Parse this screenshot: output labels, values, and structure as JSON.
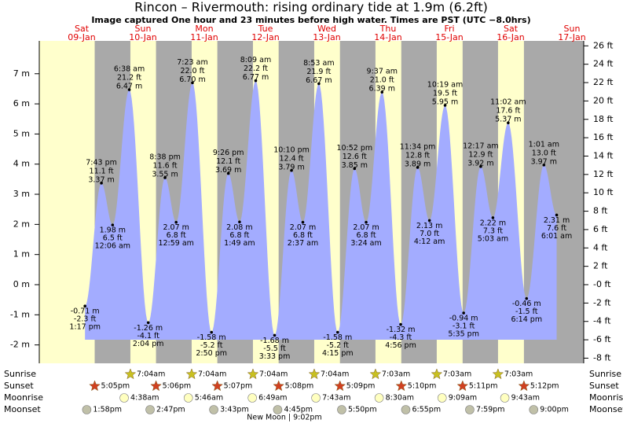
{
  "title": "Rincon – Rivermouth: rising  ordinary tide at 1.9m (6.2ft)",
  "subtitle": "Image captured One hour and 23 minutes before high water. Times are PST (UTC −8.0hrs)",
  "chart_data": {
    "type": "tide",
    "color": "#a3acff",
    "days": [
      {
        "weekday": "Sat",
        "date": "09-Jan"
      },
      {
        "weekday": "Sun",
        "date": "10-Jan"
      },
      {
        "weekday": "Mon",
        "date": "11-Jan"
      },
      {
        "weekday": "Tue",
        "date": "12-Jan"
      },
      {
        "weekday": "Wed",
        "date": "13-Jan"
      },
      {
        "weekday": "Thu",
        "date": "14-Jan"
      },
      {
        "weekday": "Fri",
        "date": "15-Jan"
      },
      {
        "weekday": "Sat",
        "date": "16-Jan"
      },
      {
        "weekday": "Sun",
        "date": "17-Jan"
      }
    ],
    "ylim": [
      -2.61,
      8.09
    ],
    "yticks": [
      {
        "value": 7,
        "label": "7 m"
      },
      {
        "value": 6,
        "label": "6 m"
      },
      {
        "value": 5,
        "label": "5 m"
      },
      {
        "value": 4,
        "label": "4 m"
      },
      {
        "value": 3,
        "label": "3 m"
      },
      {
        "value": 2,
        "label": "2 m"
      },
      {
        "value": 1,
        "label": "1 m"
      },
      {
        "value": 0,
        "label": "0 m"
      },
      {
        "value": -1,
        "label": "-1 m"
      },
      {
        "value": -2,
        "label": "-2 m"
      }
    ],
    "y2lim": [
      -8.56,
      26.54
    ],
    "y2ticks": [
      {
        "value": 26,
        "label": "26 ft"
      },
      {
        "value": 24,
        "label": "24 ft"
      },
      {
        "value": 22,
        "label": "22 ft"
      },
      {
        "value": 20,
        "label": "20 ft"
      },
      {
        "value": 18,
        "label": "18 ft"
      },
      {
        "value": 16,
        "label": "16 ft"
      },
      {
        "value": 14,
        "label": "14 ft"
      },
      {
        "value": 12,
        "label": "12 ft"
      },
      {
        "value": 10,
        "label": "10 ft"
      },
      {
        "value": 8,
        "label": "8 ft"
      },
      {
        "value": 6,
        "label": "6 ft"
      },
      {
        "value": 4,
        "label": "4 ft"
      },
      {
        "value": 2,
        "label": "2 ft"
      },
      {
        "value": 0,
        "label": "-0 ft"
      },
      {
        "value": -2,
        "label": "-2 ft"
      },
      {
        "value": -4,
        "label": "-4 ft"
      },
      {
        "value": -6,
        "label": "-6 ft"
      },
      {
        "value": -8,
        "label": "-8 ft"
      }
    ],
    "extremes": [
      {
        "date": "09-Jan",
        "time": "1:17 pm",
        "m": -0.71,
        "m_label": "-0.71 m",
        "ft": -2.3,
        "ft_label": "-2.3 ft"
      },
      {
        "date": "09-Jan",
        "time": "7:43 pm",
        "m": 3.37,
        "m_label": "3.37 m",
        "ft": 11.1,
        "ft_label": "11.1 ft"
      },
      {
        "date": "10-Jan",
        "time": "12:06 am",
        "m": 1.98,
        "m_label": "1.98 m",
        "ft": 6.5,
        "ft_label": "6.5 ft"
      },
      {
        "date": "10-Jan",
        "time": "6:38 am",
        "m": 6.47,
        "m_label": "6.47 m",
        "ft": 21.2,
        "ft_label": "21.2 ft"
      },
      {
        "date": "10-Jan",
        "time": "2:04 pm",
        "m": -1.26,
        "m_label": "-1.26 m",
        "ft": -4.1,
        "ft_label": "-4.1 ft"
      },
      {
        "date": "10-Jan",
        "time": "8:38 pm",
        "m": 3.55,
        "m_label": "3.55 m",
        "ft": 11.6,
        "ft_label": "11.6 ft"
      },
      {
        "date": "11-Jan",
        "time": "12:59 am",
        "m": 2.07,
        "m_label": "2.07 m",
        "ft": 6.8,
        "ft_label": "6.8 ft"
      },
      {
        "date": "11-Jan",
        "time": "7:23 am",
        "m": 6.7,
        "m_label": "6.70 m",
        "ft": 22.0,
        "ft_label": "22.0 ft"
      },
      {
        "date": "11-Jan",
        "time": "2:50 pm",
        "m": -1.58,
        "m_label": "-1.58 m",
        "ft": -5.2,
        "ft_label": "-5.2 ft"
      },
      {
        "date": "11-Jan",
        "time": "9:26 pm",
        "m": 3.69,
        "m_label": "3.69 m",
        "ft": 12.1,
        "ft_label": "12.1 ft"
      },
      {
        "date": "12-Jan",
        "time": "1:49 am",
        "m": 2.08,
        "m_label": "2.08 m",
        "ft": 6.8,
        "ft_label": "6.8 ft"
      },
      {
        "date": "12-Jan",
        "time": "8:09 am",
        "m": 6.77,
        "m_label": "6.77 m",
        "ft": 22.2,
        "ft_label": "22.2 ft"
      },
      {
        "date": "12-Jan",
        "time": "3:33 pm",
        "m": -1.68,
        "m_label": "-1.68 m",
        "ft": -5.5,
        "ft_label": "-5.5 ft"
      },
      {
        "date": "12-Jan",
        "time": "10:10 pm",
        "m": 3.79,
        "m_label": "3.79 m",
        "ft": 12.4,
        "ft_label": "12.4 ft"
      },
      {
        "date": "13-Jan",
        "time": "2:37 am",
        "m": 2.07,
        "m_label": "2.07 m",
        "ft": 6.8,
        "ft_label": "6.8 ft"
      },
      {
        "date": "13-Jan",
        "time": "8:53 am",
        "m": 6.67,
        "m_label": "6.67 m",
        "ft": 21.9,
        "ft_label": "21.9 ft"
      },
      {
        "date": "13-Jan",
        "time": "4:15 pm",
        "m": -1.58,
        "m_label": "-1.58 m",
        "ft": -5.2,
        "ft_label": "-5.2 ft"
      },
      {
        "date": "13-Jan",
        "time": "10:52 pm",
        "m": 3.85,
        "m_label": "3.85 m",
        "ft": 12.6,
        "ft_label": "12.6 ft"
      },
      {
        "date": "14-Jan",
        "time": "3:24 am",
        "m": 2.07,
        "m_label": "2.07 m",
        "ft": 6.8,
        "ft_label": "6.8 ft"
      },
      {
        "date": "14-Jan",
        "time": "9:37 am",
        "m": 6.39,
        "m_label": "6.39 m",
        "ft": 21.0,
        "ft_label": "21.0 ft"
      },
      {
        "date": "14-Jan",
        "time": "4:56 pm",
        "m": -1.32,
        "m_label": "-1.32 m",
        "ft": -4.3,
        "ft_label": "-4.3 ft"
      },
      {
        "date": "14-Jan",
        "time": "11:34 pm",
        "m": 3.89,
        "m_label": "3.89 m",
        "ft": 12.8,
        "ft_label": "12.8 ft"
      },
      {
        "date": "15-Jan",
        "time": "4:12 am",
        "m": 2.13,
        "m_label": "2.13 m",
        "ft": 7.0,
        "ft_label": "7.0 ft"
      },
      {
        "date": "15-Jan",
        "time": "10:19 am",
        "m": 5.95,
        "m_label": "5.95 m",
        "ft": 19.5,
        "ft_label": "19.5 ft"
      },
      {
        "date": "15-Jan",
        "time": "5:35 pm",
        "m": -0.94,
        "m_label": "-0.94 m",
        "ft": -3.1,
        "ft_label": "-3.1 ft"
      },
      {
        "date": "16-Jan",
        "time": "12:17 am",
        "m": 3.92,
        "m_label": "3.92 m",
        "ft": 12.9,
        "ft_label": "12.9 ft"
      },
      {
        "date": "16-Jan",
        "time": "5:03 am",
        "m": 2.22,
        "m_label": "2.22 m",
        "ft": 7.3,
        "ft_label": "7.3 ft"
      },
      {
        "date": "16-Jan",
        "time": "11:02 am",
        "m": 5.37,
        "m_label": "5.37 m",
        "ft": 17.6,
        "ft_label": "17.6 ft"
      },
      {
        "date": "16-Jan",
        "time": "6:14 pm",
        "m": -0.46,
        "m_label": "-0.46 m",
        "ft": -1.5,
        "ft_label": "-1.5 ft"
      },
      {
        "date": "17-Jan",
        "time": "1:01 am",
        "m": 3.97,
        "m_label": "3.97 m",
        "ft": 13.0,
        "ft_label": "13.0 ft"
      },
      {
        "date": "17-Jan",
        "time": "6:01 am",
        "m": 2.31,
        "m_label": "2.31 m",
        "ft": 7.6,
        "ft_label": "7.6 ft"
      }
    ],
    "rows": [
      {
        "name": "Sunrise",
        "events": [
          {
            "date": "10-Jan",
            "time": "7:04am"
          },
          {
            "date": "11-Jan",
            "time": "7:04am"
          },
          {
            "date": "12-Jan",
            "time": "7:04am"
          },
          {
            "date": "13-Jan",
            "time": "7:04am"
          },
          {
            "date": "14-Jan",
            "time": "7:03am"
          },
          {
            "date": "15-Jan",
            "time": "7:03am"
          },
          {
            "date": "16-Jan",
            "time": "7:03am"
          }
        ]
      },
      {
        "name": "Sunset",
        "events": [
          {
            "date": "09-Jan",
            "time": "5:05pm"
          },
          {
            "date": "10-Jan",
            "time": "5:06pm"
          },
          {
            "date": "11-Jan",
            "time": "5:07pm"
          },
          {
            "date": "12-Jan",
            "time": "5:08pm"
          },
          {
            "date": "13-Jan",
            "time": "5:09pm"
          },
          {
            "date": "14-Jan",
            "time": "5:10pm"
          },
          {
            "date": "15-Jan",
            "time": "5:11pm"
          },
          {
            "date": "16-Jan",
            "time": "5:12pm"
          }
        ]
      },
      {
        "name": "Moonrise",
        "events": [
          {
            "date": "10-Jan",
            "time": "4:38am"
          },
          {
            "date": "11-Jan",
            "time": "5:46am"
          },
          {
            "date": "12-Jan",
            "time": "6:49am"
          },
          {
            "date": "13-Jan",
            "time": "7:43am"
          },
          {
            "date": "14-Jan",
            "time": "8:30am"
          },
          {
            "date": "15-Jan",
            "time": "9:09am"
          },
          {
            "date": "16-Jan",
            "time": "9:43am"
          }
        ]
      },
      {
        "name": "Moonset",
        "events": [
          {
            "date": "09-Jan",
            "time": "1:58pm"
          },
          {
            "date": "10-Jan",
            "time": "2:47pm"
          },
          {
            "date": "11-Jan",
            "time": "3:43pm"
          },
          {
            "date": "12-Jan",
            "time": "4:45pm"
          },
          {
            "date": "13-Jan",
            "time": "5:50pm"
          },
          {
            "date": "14-Jan",
            "time": "6:55pm"
          },
          {
            "date": "15-Jan",
            "time": "7:59pm"
          },
          {
            "date": "16-Jan",
            "time": "9:00pm"
          }
        ]
      }
    ],
    "moon_phase": "New Moon | 9:02pm"
  }
}
